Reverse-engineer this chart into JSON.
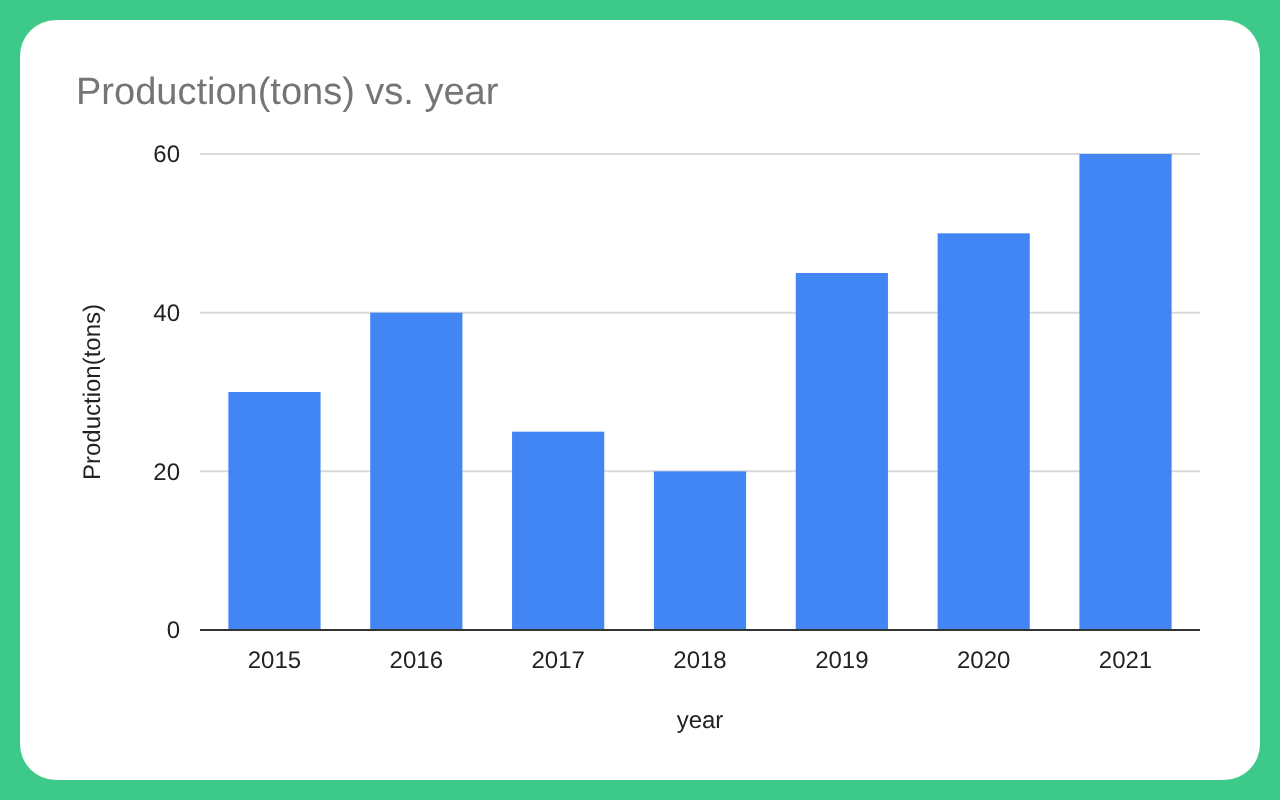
{
  "chart_data": {
    "type": "bar",
    "title": "Production(tons) vs. year",
    "xlabel": "year",
    "ylabel": "Production(tons)",
    "categories": [
      "2015",
      "2016",
      "2017",
      "2018",
      "2019",
      "2020",
      "2021"
    ],
    "values": [
      30,
      40,
      25,
      20,
      45,
      50,
      60
    ],
    "color": "#4285f4",
    "ylim": [
      0,
      60
    ],
    "yticks": [
      0,
      20,
      40,
      60
    ],
    "grid": "y"
  }
}
